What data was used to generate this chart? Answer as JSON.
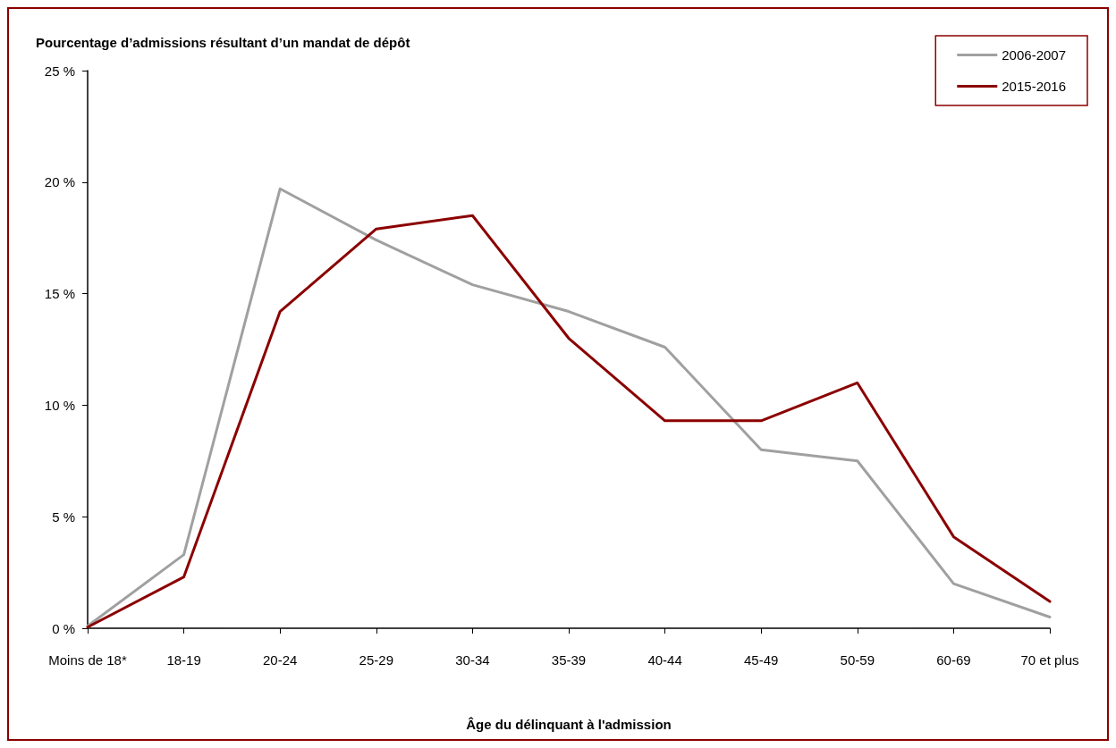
{
  "chart_data": {
    "type": "line",
    "title": "Pourcentage d’admissions résultant d’un mandat de dépôt",
    "xlabel": "Âge du délinquant à l'admission",
    "categories": [
      "Moins de 18*",
      "18-19",
      "20-24",
      "25-29",
      "30-34",
      "35-39",
      "40-44",
      "45-49",
      "50-59",
      "60-69",
      "70 et plus"
    ],
    "series": [
      {
        "name": "2006-2007",
        "color": "#a0a0a0",
        "values": [
          0.1,
          3.3,
          19.7,
          17.4,
          15.4,
          14.2,
          12.6,
          8.0,
          7.5,
          2.0,
          0.5
        ]
      },
      {
        "name": "2015-2016",
        "color": "#8b0000",
        "values": [
          0.05,
          2.3,
          14.2,
          17.9,
          18.5,
          13.0,
          9.3,
          9.3,
          11.0,
          4.1,
          1.2
        ]
      }
    ],
    "ylim": [
      0,
      25
    ],
    "yticks": [
      {
        "value": 0,
        "label": "0 %"
      },
      {
        "value": 5,
        "label": "5 %"
      },
      {
        "value": 10,
        "label": "10 %"
      },
      {
        "value": 15,
        "label": "15 %"
      },
      {
        "value": 20,
        "label": "20 %"
      },
      {
        "value": 25,
        "label": "25 %"
      }
    ],
    "grid": false,
    "legend": "top right",
    "marker": "none",
    "line_style": "solid"
  }
}
